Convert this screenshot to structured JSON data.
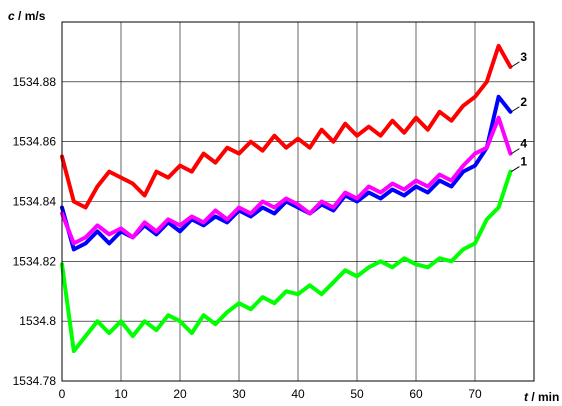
{
  "chart_data": {
    "type": "line",
    "title": "",
    "x_label_var": "t",
    "x_label_unit": " / min",
    "y_label_var": "c",
    "y_label_unit": " / m/s",
    "xlim": [
      0,
      80
    ],
    "ylim": [
      1534.78,
      1534.9
    ],
    "x_ticks": [
      0,
      10,
      20,
      30,
      40,
      50,
      60,
      70
    ],
    "x_tick_labels": [
      "0",
      "10",
      "20",
      "30",
      "40",
      "50",
      "60",
      "70"
    ],
    "y_ticks": [
      1534.78,
      1534.8,
      1534.82,
      1534.84,
      1534.86,
      1534.88
    ],
    "y_tick_labels": [
      "1534.78",
      "1534.8",
      "1534.82",
      "1534.84",
      "1534.86",
      "1534.88"
    ],
    "grid": true,
    "series": [
      {
        "name": "1",
        "color": "#00ff00",
        "points": [
          [
            0,
            1534.819
          ],
          [
            2,
            1534.79
          ],
          [
            4,
            1534.795
          ],
          [
            6,
            1534.8
          ],
          [
            8,
            1534.796
          ],
          [
            10,
            1534.8
          ],
          [
            12,
            1534.795
          ],
          [
            14,
            1534.8
          ],
          [
            16,
            1534.797
          ],
          [
            18,
            1534.802
          ],
          [
            20,
            1534.8
          ],
          [
            22,
            1534.796
          ],
          [
            24,
            1534.802
          ],
          [
            26,
            1534.799
          ],
          [
            28,
            1534.803
          ],
          [
            30,
            1534.806
          ],
          [
            32,
            1534.804
          ],
          [
            34,
            1534.808
          ],
          [
            36,
            1534.806
          ],
          [
            38,
            1534.81
          ],
          [
            40,
            1534.809
          ],
          [
            42,
            1534.812
          ],
          [
            44,
            1534.809
          ],
          [
            46,
            1534.813
          ],
          [
            48,
            1534.817
          ],
          [
            50,
            1534.815
          ],
          [
            52,
            1534.818
          ],
          [
            54,
            1534.82
          ],
          [
            56,
            1534.818
          ],
          [
            58,
            1534.821
          ],
          [
            60,
            1534.819
          ],
          [
            62,
            1534.818
          ],
          [
            64,
            1534.821
          ],
          [
            66,
            1534.82
          ],
          [
            68,
            1534.824
          ],
          [
            70,
            1534.826
          ],
          [
            72,
            1534.834
          ],
          [
            74,
            1534.838
          ],
          [
            76,
            1534.85
          ]
        ]
      },
      {
        "name": "2",
        "color": "#0000ff",
        "points": [
          [
            0,
            1534.838
          ],
          [
            2,
            1534.824
          ],
          [
            4,
            1534.826
          ],
          [
            6,
            1534.83
          ],
          [
            8,
            1534.826
          ],
          [
            10,
            1534.83
          ],
          [
            12,
            1534.828
          ],
          [
            14,
            1534.832
          ],
          [
            16,
            1534.829
          ],
          [
            18,
            1534.833
          ],
          [
            20,
            1534.83
          ],
          [
            22,
            1534.834
          ],
          [
            24,
            1534.832
          ],
          [
            26,
            1534.835
          ],
          [
            28,
            1534.833
          ],
          [
            30,
            1534.837
          ],
          [
            32,
            1534.835
          ],
          [
            34,
            1534.838
          ],
          [
            36,
            1534.836
          ],
          [
            38,
            1534.84
          ],
          [
            40,
            1534.838
          ],
          [
            42,
            1534.836
          ],
          [
            44,
            1534.839
          ],
          [
            46,
            1534.837
          ],
          [
            48,
            1534.842
          ],
          [
            50,
            1534.84
          ],
          [
            52,
            1534.843
          ],
          [
            54,
            1534.841
          ],
          [
            56,
            1534.844
          ],
          [
            58,
            1534.842
          ],
          [
            60,
            1534.845
          ],
          [
            62,
            1534.843
          ],
          [
            64,
            1534.847
          ],
          [
            66,
            1534.845
          ],
          [
            68,
            1534.85
          ],
          [
            70,
            1534.852
          ],
          [
            72,
            1534.858
          ],
          [
            74,
            1534.875
          ],
          [
            76,
            1534.87
          ]
        ]
      },
      {
        "name": "3",
        "color": "#ff0000",
        "points": [
          [
            0,
            1534.855
          ],
          [
            2,
            1534.84
          ],
          [
            4,
            1534.838
          ],
          [
            6,
            1534.845
          ],
          [
            8,
            1534.85
          ],
          [
            10,
            1534.848
          ],
          [
            12,
            1534.846
          ],
          [
            14,
            1534.842
          ],
          [
            16,
            1534.85
          ],
          [
            18,
            1534.848
          ],
          [
            20,
            1534.852
          ],
          [
            22,
            1534.85
          ],
          [
            24,
            1534.856
          ],
          [
            26,
            1534.853
          ],
          [
            28,
            1534.858
          ],
          [
            30,
            1534.856
          ],
          [
            32,
            1534.86
          ],
          [
            34,
            1534.857
          ],
          [
            36,
            1534.862
          ],
          [
            38,
            1534.858
          ],
          [
            40,
            1534.861
          ],
          [
            42,
            1534.858
          ],
          [
            44,
            1534.864
          ],
          [
            46,
            1534.86
          ],
          [
            48,
            1534.866
          ],
          [
            50,
            1534.862
          ],
          [
            52,
            1534.865
          ],
          [
            54,
            1534.862
          ],
          [
            56,
            1534.867
          ],
          [
            58,
            1534.863
          ],
          [
            60,
            1534.868
          ],
          [
            62,
            1534.864
          ],
          [
            64,
            1534.87
          ],
          [
            66,
            1534.867
          ],
          [
            68,
            1534.872
          ],
          [
            70,
            1534.875
          ],
          [
            72,
            1534.88
          ],
          [
            74,
            1534.892
          ],
          [
            76,
            1534.885
          ]
        ]
      },
      {
        "name": "4",
        "color": "#ff00ff",
        "points": [
          [
            0,
            1534.836
          ],
          [
            2,
            1534.826
          ],
          [
            4,
            1534.828
          ],
          [
            6,
            1534.832
          ],
          [
            8,
            1534.829
          ],
          [
            10,
            1534.831
          ],
          [
            12,
            1534.828
          ],
          [
            14,
            1534.833
          ],
          [
            16,
            1534.83
          ],
          [
            18,
            1534.834
          ],
          [
            20,
            1534.832
          ],
          [
            22,
            1534.835
          ],
          [
            24,
            1534.833
          ],
          [
            26,
            1534.837
          ],
          [
            28,
            1534.834
          ],
          [
            30,
            1534.838
          ],
          [
            32,
            1534.836
          ],
          [
            34,
            1534.84
          ],
          [
            36,
            1534.838
          ],
          [
            38,
            1534.841
          ],
          [
            40,
            1534.839
          ],
          [
            42,
            1534.836
          ],
          [
            44,
            1534.84
          ],
          [
            46,
            1534.838
          ],
          [
            48,
            1534.843
          ],
          [
            50,
            1534.841
          ],
          [
            52,
            1534.845
          ],
          [
            54,
            1534.843
          ],
          [
            56,
            1534.846
          ],
          [
            58,
            1534.844
          ],
          [
            60,
            1534.847
          ],
          [
            62,
            1534.845
          ],
          [
            64,
            1534.849
          ],
          [
            66,
            1534.847
          ],
          [
            68,
            1534.852
          ],
          [
            70,
            1534.856
          ],
          [
            72,
            1534.858
          ],
          [
            74,
            1534.868
          ],
          [
            76,
            1534.856
          ]
        ]
      }
    ]
  }
}
